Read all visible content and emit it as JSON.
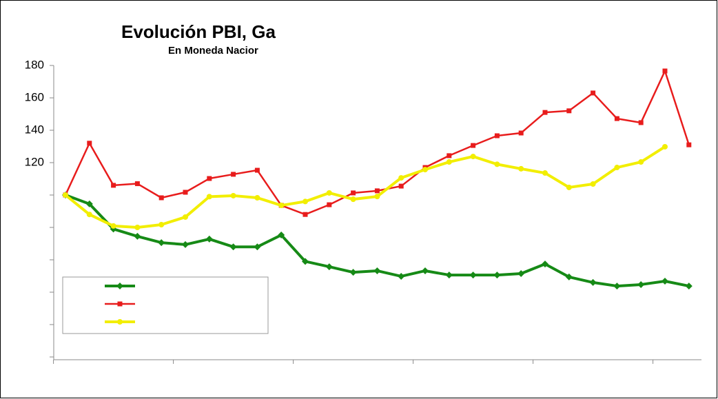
{
  "chart_data": {
    "type": "line",
    "title": "Evolución PBI, Ga",
    "subtitle": "En Moneda Nacior",
    "categories": [
      null,
      null,
      null,
      null,
      null,
      null,
      null,
      null,
      null,
      null,
      null,
      null,
      null,
      null,
      null,
      null,
      null,
      null,
      null,
      null,
      null,
      null,
      null,
      null,
      null,
      null,
      null
    ],
    "series": [
      {
        "color": "#168a16",
        "marker": "diamond",
        "values": [
          100,
          94.5,
          79,
          74.5,
          70.6,
          69.4,
          72.8,
          68,
          68,
          75.3,
          59,
          55.7,
          52.3,
          53.2,
          49.8,
          53.2,
          50.6,
          50.6,
          50.6,
          51.5,
          57.4,
          49.4,
          46,
          43.8,
          44.7,
          46.8,
          43.8
        ]
      },
      {
        "color": "#e81c1c",
        "marker": "square",
        "values": [
          100,
          132,
          106,
          107,
          98.3,
          101.7,
          110.2,
          112.8,
          115.3,
          93.6,
          88,
          94,
          101.3,
          102.6,
          105.5,
          117,
          124.3,
          130.6,
          136.6,
          138.3,
          151,
          152,
          163,
          147.2,
          144.7,
          176.6,
          131
        ]
      },
      {
        "color": "#f2ee00",
        "marker": "circle",
        "values": [
          100,
          88,
          80.9,
          80,
          81.7,
          86.4,
          99,
          99.6,
          98.3,
          93.6,
          96,
          101.3,
          97.4,
          99.1,
          110.6,
          115.7,
          120.4,
          123.8,
          119,
          116.2,
          113.6,
          104.7,
          106.8,
          117,
          120.4,
          129.8,
          null
        ]
      }
    ],
    "ylim": [
      0,
      180
    ],
    "yticks": [
      120,
      140,
      160,
      180
    ],
    "yticks_unlabeled": [
      0,
      20,
      40,
      60,
      80,
      100
    ],
    "legend": "bottom-left"
  }
}
